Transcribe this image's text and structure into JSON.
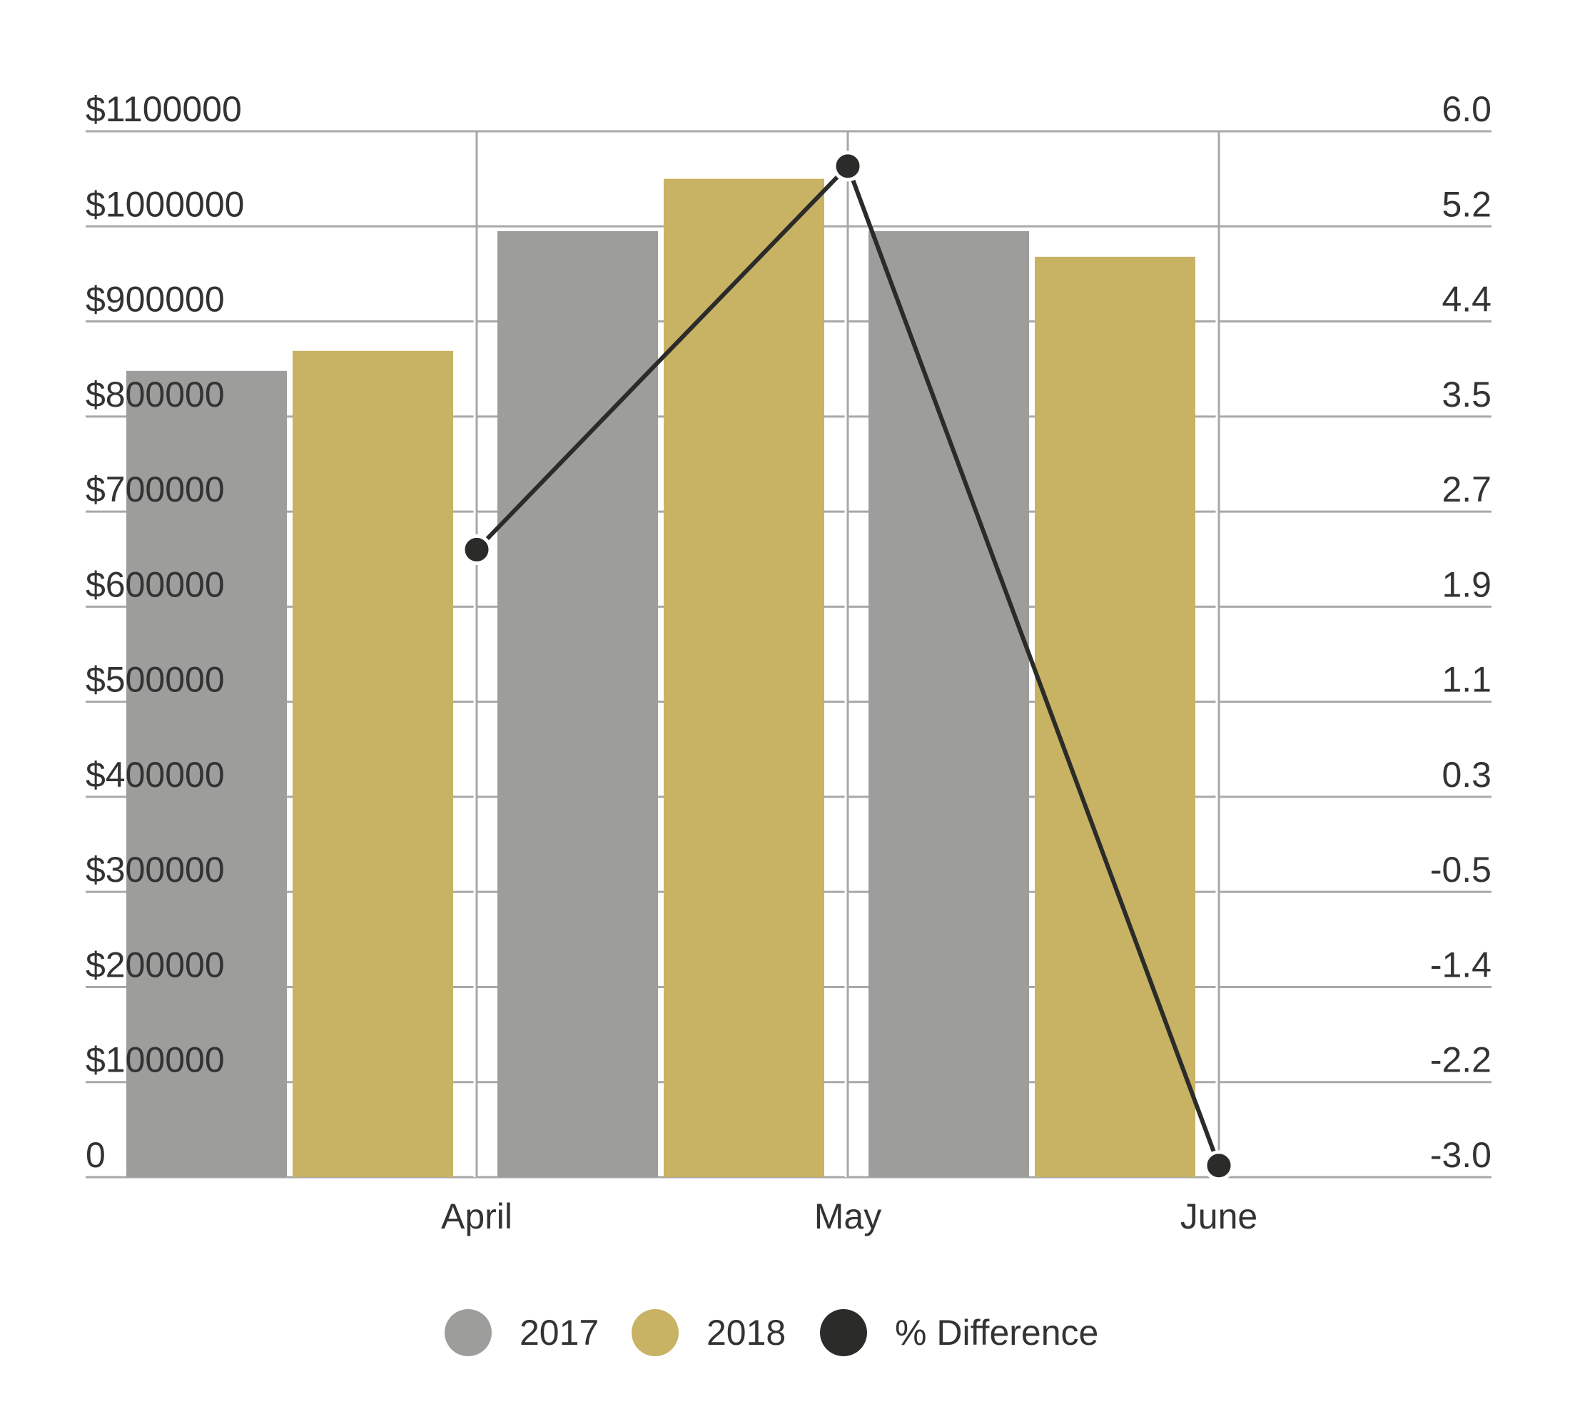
{
  "chart_data": {
    "type": "bar",
    "categories": [
      "April",
      "May",
      "June"
    ],
    "series": [
      {
        "name": "2017",
        "kind": "bar",
        "axis": "left",
        "color": "#9d9d9c",
        "values": [
          848000,
          995000,
          995000
        ]
      },
      {
        "name": "2018",
        "kind": "bar",
        "axis": "left",
        "color": "#c8b263",
        "values": [
          869000,
          1050000,
          968000
        ]
      },
      {
        "name": "% Difference",
        "kind": "line",
        "axis": "right",
        "color": "#2b2b2a",
        "values": [
          2.4,
          5.7,
          -2.9
        ]
      }
    ],
    "left_axis": {
      "ylim": [
        0,
        1100000
      ],
      "tick_labels": [
        "0",
        "$100000",
        "$200000",
        "$300000",
        "$400000",
        "$500000",
        "$600000",
        "$700000",
        "$800000",
        "$900000",
        "$1000000",
        "$1100000"
      ]
    },
    "right_axis": {
      "ylim": [
        -3.0,
        6.0
      ],
      "tick_labels": [
        "-3.0",
        "-2.2",
        "-1.4",
        "-0.5",
        "0.3",
        "1.1",
        "1.9",
        "2.7",
        "3.5",
        "4.4",
        "5.2",
        "6.0"
      ]
    },
    "grid": true,
    "legend": {
      "position": "bottom",
      "items": [
        "2017",
        "2018",
        "% Difference"
      ]
    },
    "title": "",
    "xlabel": "",
    "ylabel": ""
  }
}
